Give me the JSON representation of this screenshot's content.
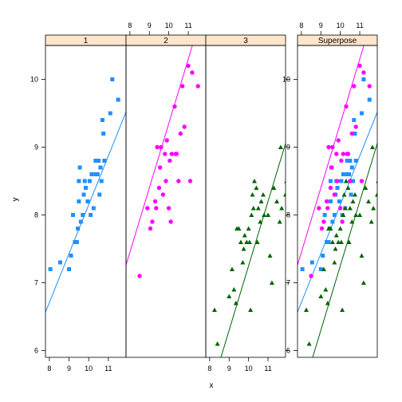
{
  "chart_data": {
    "type": "scatter",
    "xlabel": "x",
    "ylabel": "y",
    "xlim": [
      7.8,
      11.9
    ],
    "ylim": [
      5.9,
      10.5
    ],
    "x_ticks": [
      8,
      9,
      10,
      11
    ],
    "y_ticks": [
      6,
      7,
      8,
      9,
      10
    ],
    "panels": [
      {
        "strip": "1",
        "x_axis_side": "bottom",
        "series": [
          {
            "group": 1,
            "color": "#1E90FF",
            "marker": "square",
            "points": [
              [
                8.05,
                7.2
              ],
              [
                8.55,
                7.3
              ],
              [
                9.0,
                7.2
              ],
              [
                9.1,
                7.4
              ],
              [
                9.2,
                8.0
              ],
              [
                9.3,
                7.6
              ],
              [
                9.4,
                7.6
              ],
              [
                9.45,
                7.8
              ],
              [
                9.5,
                8.2
              ],
              [
                9.5,
                8.5
              ],
              [
                9.55,
                8.7
              ],
              [
                9.6,
                7.9
              ],
              [
                9.7,
                8.0
              ],
              [
                9.75,
                8.3
              ],
              [
                9.8,
                8.5
              ],
              [
                9.85,
                8.4
              ],
              [
                9.95,
                8.2
              ],
              [
                10.05,
                8.5
              ],
              [
                10.1,
                8.0
              ],
              [
                10.15,
                8.6
              ],
              [
                10.25,
                8.1
              ],
              [
                10.35,
                8.6
              ],
              [
                10.35,
                8.8
              ],
              [
                10.45,
                8.6
              ],
              [
                10.5,
                8.8
              ],
              [
                10.55,
                8.3
              ],
              [
                10.6,
                8.7
              ],
              [
                10.65,
                8.5
              ],
              [
                10.7,
                9.4
              ],
              [
                10.75,
                9.2
              ],
              [
                10.8,
                8.8
              ],
              [
                11.1,
                9.5
              ],
              [
                11.2,
                10.0
              ],
              [
                11.5,
                9.7
              ]
            ],
            "fit": {
              "intercept": 0.95,
              "slope": 0.72
            }
          }
        ]
      },
      {
        "strip": "2",
        "x_axis_side": "top",
        "series": [
          {
            "group": 2,
            "color": "#FF00FF",
            "marker": "circle",
            "points": [
              [
                8.5,
                7.1
              ],
              [
                8.9,
                8.1
              ],
              [
                9.05,
                7.8
              ],
              [
                9.15,
                7.9
              ],
              [
                9.3,
                8.2
              ],
              [
                9.35,
                8.1
              ],
              [
                9.4,
                9.0
              ],
              [
                9.5,
                8.4
              ],
              [
                9.55,
                8.7
              ],
              [
                9.6,
                9.0
              ],
              [
                9.7,
                8.3
              ],
              [
                9.8,
                8.9
              ],
              [
                9.85,
                8.5
              ],
              [
                9.9,
                9.1
              ],
              [
                10.0,
                8.1
              ],
              [
                10.05,
                8.8
              ],
              [
                10.1,
                7.9
              ],
              [
                10.15,
                8.9
              ],
              [
                10.3,
                9.6
              ],
              [
                10.35,
                8.9
              ],
              [
                10.4,
                8.9
              ],
              [
                10.5,
                8.5
              ],
              [
                10.6,
                9.2
              ],
              [
                10.7,
                9.9
              ],
              [
                10.8,
                9.3
              ],
              [
                11.0,
                10.2
              ],
              [
                11.1,
                8.5
              ],
              [
                11.2,
                10.1
              ],
              [
                11.5,
                9.9
              ]
            ],
            "fit": {
              "intercept": -0.15,
              "slope": 0.95
            }
          }
        ]
      },
      {
        "strip": "3",
        "x_axis_side": "bottom",
        "series": [
          {
            "group": 3,
            "color": "#006400",
            "marker": "triangle",
            "points": [
              [
                8.25,
                6.6
              ],
              [
                8.4,
                6.1
              ],
              [
                9.0,
                6.8
              ],
              [
                9.15,
                7.2
              ],
              [
                9.25,
                6.9
              ],
              [
                9.35,
                6.7
              ],
              [
                9.4,
                7.8
              ],
              [
                9.5,
                7.8
              ],
              [
                9.6,
                7.6
              ],
              [
                9.7,
                7.3
              ],
              [
                9.75,
                7.5
              ],
              [
                9.8,
                7.7
              ],
              [
                9.9,
                7.6
              ],
              [
                10.0,
                7.8
              ],
              [
                10.05,
                7.6
              ],
              [
                10.1,
                6.6
              ],
              [
                10.15,
                8.0
              ],
              [
                10.2,
                8.3
              ],
              [
                10.25,
                8.1
              ],
              [
                10.3,
                8.5
              ],
              [
                10.4,
                8.4
              ],
              [
                10.45,
                7.6
              ],
              [
                10.5,
                8.1
              ],
              [
                10.6,
                7.9
              ],
              [
                10.65,
                8.2
              ],
              [
                10.75,
                8.3
              ],
              [
                10.8,
                8.0
              ],
              [
                11.0,
                8.0
              ],
              [
                11.1,
                7.4
              ],
              [
                11.2,
                7.0
              ],
              [
                11.3,
                8.4
              ],
              [
                11.45,
                8.2
              ],
              [
                11.6,
                7.9
              ],
              [
                11.7,
                8.1
              ],
              [
                11.9,
                8.3
              ],
              [
                11.65,
                9.0
              ],
              [
                11.95,
                8.5
              ]
            ],
            "fit": {
              "intercept": -2.25,
              "slope": 0.95
            }
          }
        ]
      },
      {
        "strip": "Superpose",
        "x_axis_side": "top",
        "superpose": true
      }
    ]
  }
}
